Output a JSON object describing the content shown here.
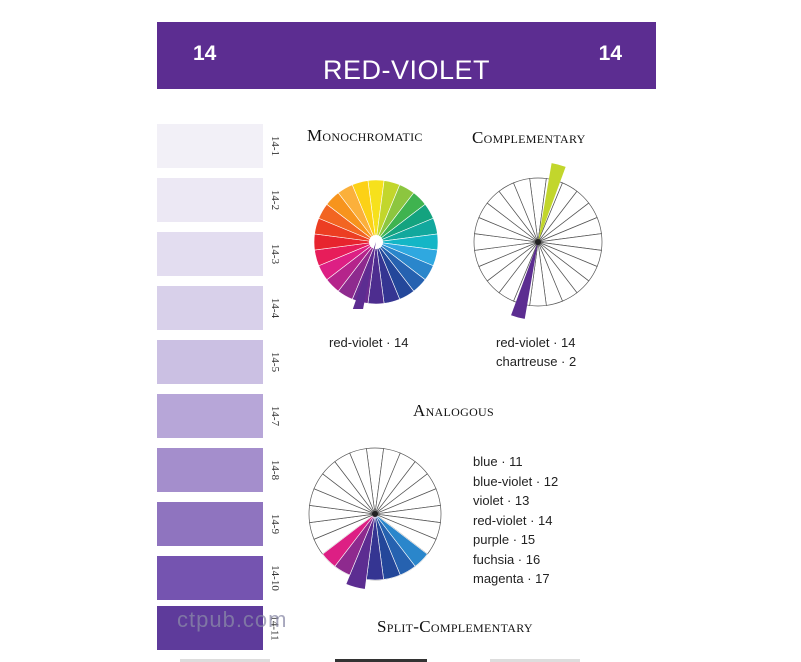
{
  "banner": {
    "number_left": "14",
    "number_right": "14",
    "title": "RED-VIOLET",
    "color": "#5c2d91"
  },
  "swatches": [
    {
      "label": "14-1",
      "color": "#f2f0f7"
    },
    {
      "label": "14-2",
      "color": "#ece8f4"
    },
    {
      "label": "14-3",
      "color": "#e3ddf0"
    },
    {
      "label": "14-4",
      "color": "#d8d0ea"
    },
    {
      "label": "14-5",
      "color": "#cbc0e3"
    },
    {
      "label": "14-7",
      "color": "#b7a6d8"
    },
    {
      "label": "14-8",
      "color": "#a48ecc"
    },
    {
      "label": "14-9",
      "color": "#8f74bf"
    },
    {
      "label": "14-10",
      "color": "#7554b0"
    },
    {
      "label": "14-11",
      "color": "#5e3b9b"
    }
  ],
  "sections": {
    "monochromatic": {
      "heading": "Monochromatic",
      "caption": "red-violet · 14"
    },
    "complementary": {
      "heading": "Complementary",
      "captions": [
        "red-violet · 14",
        "chartreuse · 2"
      ]
    },
    "analogous": {
      "heading": "Analogous",
      "items": [
        "blue · 11",
        "blue-violet · 12",
        "violet · 13",
        "red-violet  · 14",
        "purple · 15",
        "fuchsia · 16",
        "magenta · 17"
      ]
    },
    "split_complementary": {
      "heading": "Split-Complementary"
    }
  },
  "wheel_colors": [
    "#f6e11c",
    "#c2d62c",
    "#8cc63f",
    "#3fb34f",
    "#14a37f",
    "#12a89d",
    "#14b6c6",
    "#2fa8e0",
    "#2a86cb",
    "#2662b0",
    "#24479a",
    "#353592",
    "#4d2d8f",
    "#6a2c91",
    "#8e2a8e",
    "#b5248b",
    "#dd1f84",
    "#e71d5a",
    "#e7242e",
    "#ec3e22",
    "#f26522",
    "#f7941d",
    "#fbb03b",
    "#fcd116"
  ],
  "watermark": "ctpub.com"
}
